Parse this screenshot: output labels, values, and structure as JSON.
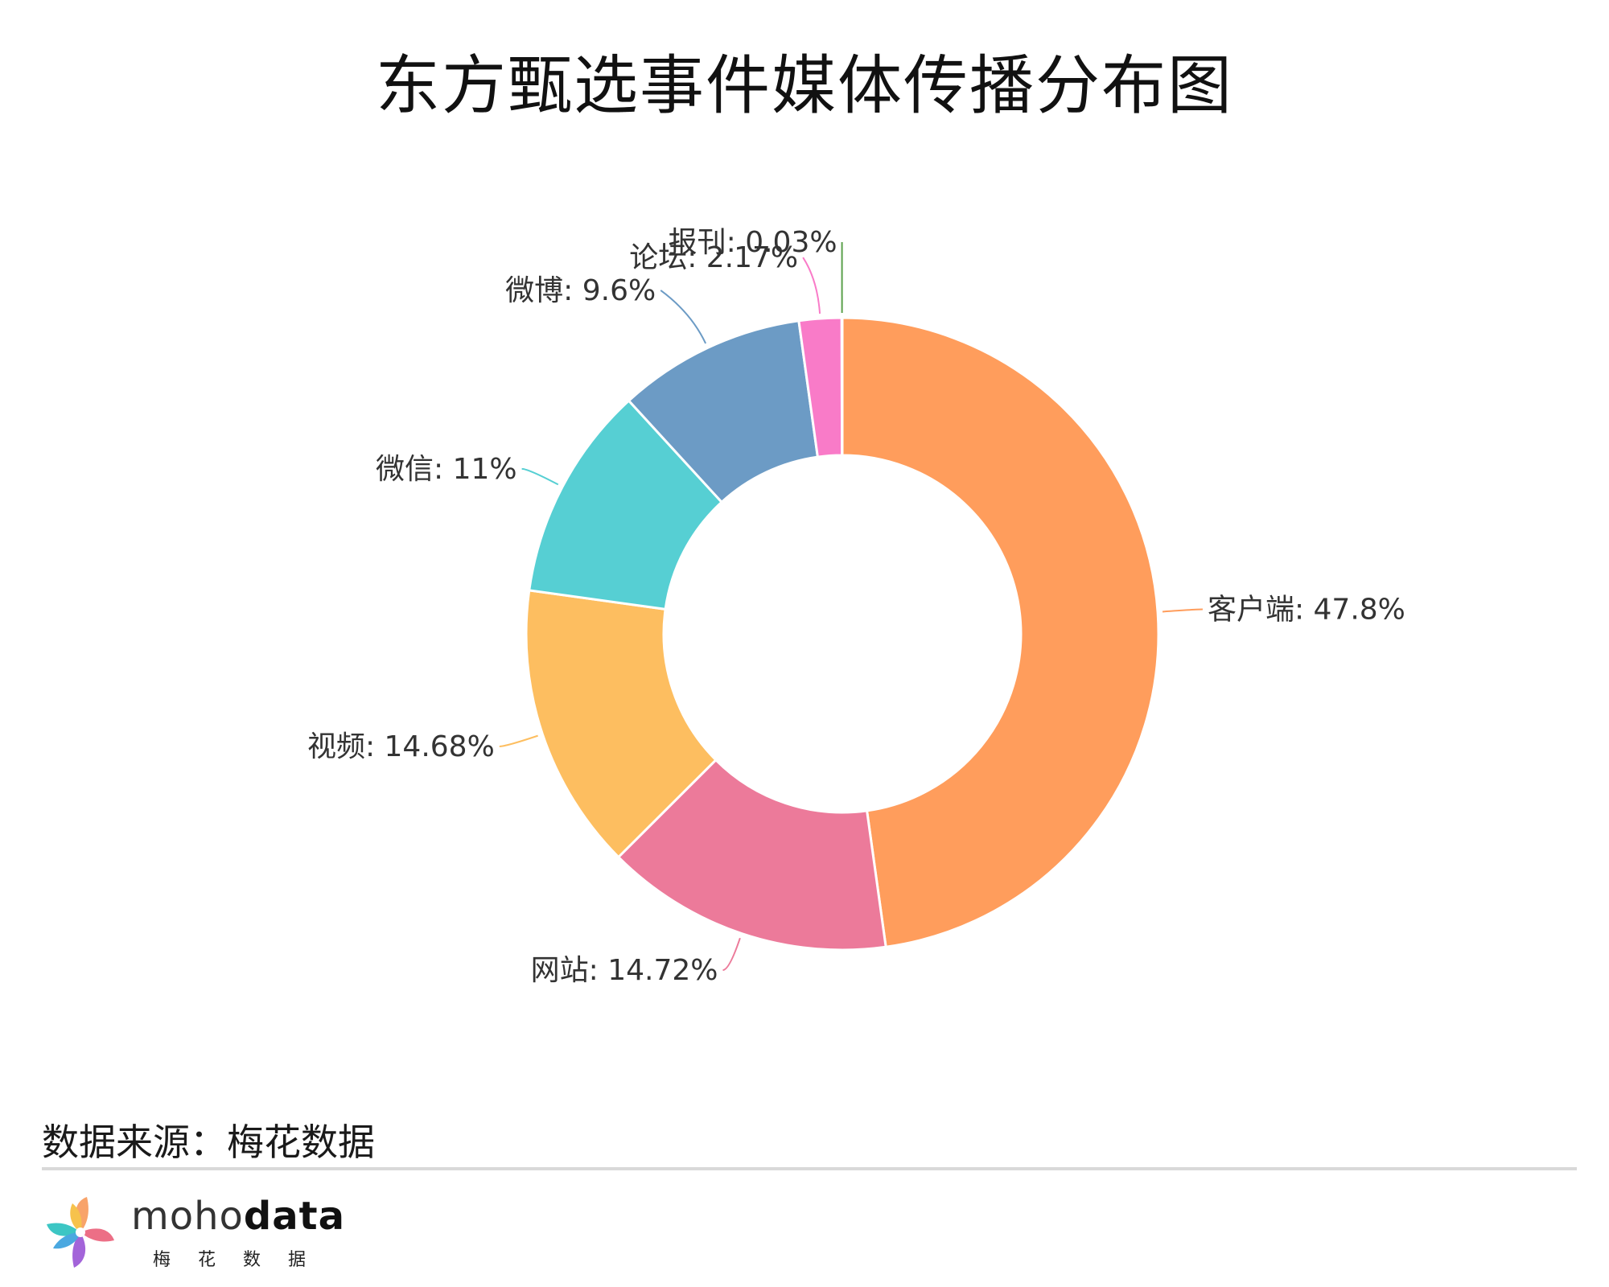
{
  "title": "东方甄选事件媒体传播分布图",
  "chart_data": {
    "type": "pie",
    "style": "donut",
    "title": "东方甄选事件媒体传播分布图",
    "legend": "none",
    "slices": [
      {
        "label": "客户端",
        "value": 47.8,
        "display": "客户端: 47.8%",
        "color": "#FF9D5C"
      },
      {
        "label": "网站",
        "value": 14.72,
        "display": "网站: 14.72%",
        "color": "#EC7A9A"
      },
      {
        "label": "视频",
        "value": 14.68,
        "display": "视频: 14.68%",
        "color": "#FDBE60"
      },
      {
        "label": "微信",
        "value": 11,
        "display": "微信: 11%",
        "color": "#56CFD3"
      },
      {
        "label": "微博",
        "value": 9.6,
        "display": "微博: 9.6%",
        "color": "#6C9BC5"
      },
      {
        "label": "论坛",
        "value": 2.17,
        "display": "论坛: 2.17%",
        "color": "#F97BC8"
      },
      {
        "label": "报刊",
        "value": 0.03,
        "display": "报刊: 0.03%",
        "color": "#5BA14B"
      }
    ]
  },
  "footer": {
    "source": "数据来源：梅花数据",
    "brand_light": "moho",
    "brand_bold": "data",
    "brand_sub": "梅花数据"
  }
}
